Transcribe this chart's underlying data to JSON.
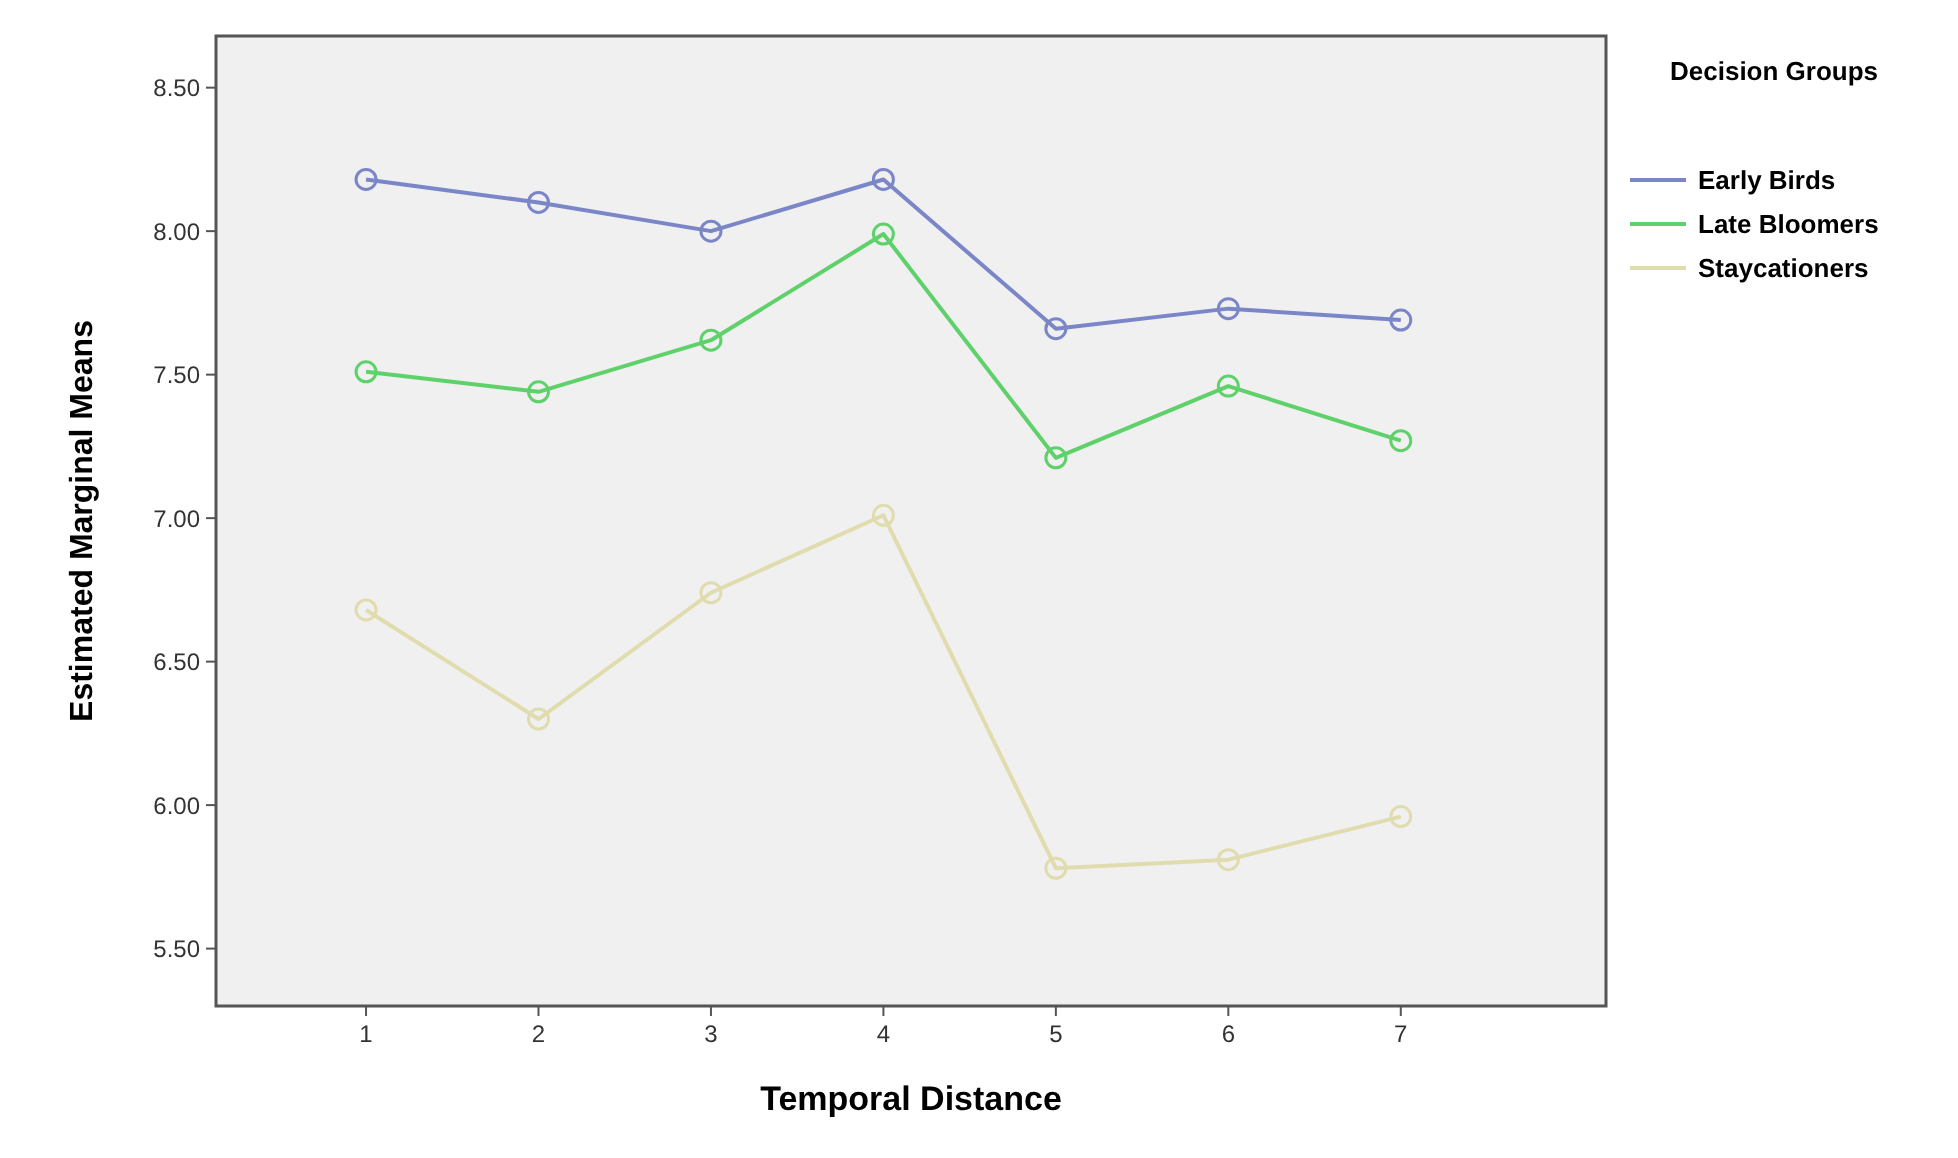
{
  "chart_data": {
    "type": "line",
    "xlabel": "Temporal Distance",
    "ylabel": "Estimated Marginal Means",
    "legend_title": "Decision Groups",
    "legend": "right",
    "marker": "circle",
    "x": [
      1,
      2,
      3,
      4,
      5,
      6,
      7
    ],
    "xlim": [
      0.13,
      8.19
    ],
    "xticks": [
      1,
      2,
      3,
      4,
      5,
      6,
      7
    ],
    "ylim": [
      5.3,
      8.68
    ],
    "yticks": [
      {
        "value": 5.5,
        "label": "5.50"
      },
      {
        "value": 6,
        "label": "6.00"
      },
      {
        "value": 6.5,
        "label": "6.50"
      },
      {
        "value": 7,
        "label": "7.00"
      },
      {
        "value": 7.5,
        "label": "7.50"
      },
      {
        "value": 8,
        "label": "8.00"
      },
      {
        "value": 8.5,
        "label": "8.50"
      }
    ],
    "series": [
      {
        "name": "Early Birds",
        "color": "#7a86c8",
        "values": [
          8.18,
          8.1,
          8.0,
          8.18,
          7.66,
          7.73,
          7.69
        ]
      },
      {
        "name": "Late Bloomers",
        "color": "#5fd16a",
        "values": [
          7.51,
          7.44,
          7.62,
          7.99,
          7.21,
          7.46,
          7.27
        ]
      },
      {
        "name": "Staycationers",
        "color": "#e0dcae",
        "values": [
          6.68,
          6.3,
          6.74,
          7.01,
          5.78,
          5.81,
          5.96
        ]
      }
    ]
  }
}
